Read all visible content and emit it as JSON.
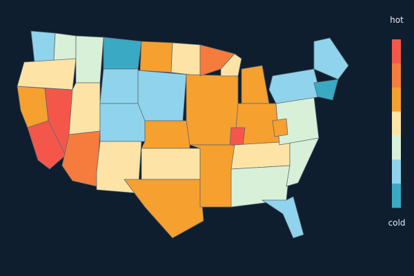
{
  "legend": {
    "top_label": "hot",
    "bottom_label": "cold",
    "colors": [
      "#f4574a",
      "#f57c3c",
      "#f5a02f",
      "#fde4a6",
      "#d8f0d8",
      "#8fd4ec",
      "#3aa9c3"
    ]
  }
}
